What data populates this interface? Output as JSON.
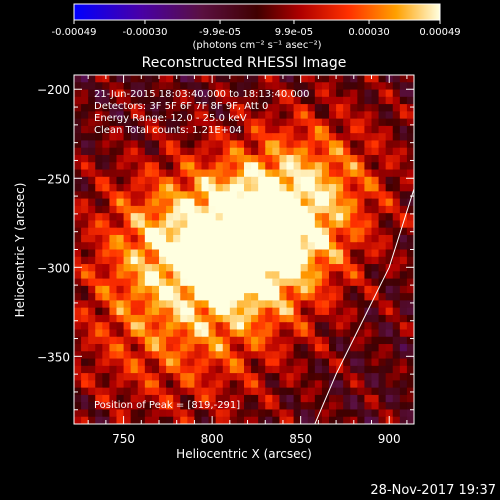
{
  "chart_data": {
    "type": "heatmap",
    "title": "Reconstructed RHESSI Image",
    "xlabel": "Heliocentric X (arcsec)",
    "ylabel": "Heliocentric Y (arcsec)",
    "xlim": [
      722,
      914
    ],
    "ylim": [
      -388,
      -192
    ],
    "x_ticks": [
      750,
      800,
      850,
      900
    ],
    "y_ticks": [
      -200,
      -250,
      -300,
      -350
    ],
    "colorbar": {
      "orientation": "horizontal",
      "position": "top",
      "colormap": "hot",
      "tick_values": [
        -0.00049,
        -0.0003,
        -9.9e-05,
        9.9e-05,
        0.0003,
        0.00049
      ],
      "tick_labels": [
        "-0.00049",
        "-0.00030",
        "-9.9e-05",
        "9.9e-05",
        "0.00030",
        "0.00049"
      ],
      "unit_label": "(photons cm⁻² s⁻¹ asec⁻²)",
      "range": [
        -0.00049,
        0.00049
      ]
    },
    "annotations": [
      "21-Jun-2015 18:03:40.000 to 18:13:40.000",
      "Detectors: 3F 5F 6F 7F 8F 9F, Att 0",
      "Energy Range: 12.0 - 25.0 keV",
      "Clean    Total counts: 1.21E+04"
    ],
    "peak_text": "Position of Peak = [819,-291]",
    "peak": [
      819,
      -291
    ],
    "sources": [
      {
        "x": 819,
        "y": -291,
        "intensity": 0.00049
      },
      {
        "x": 770,
        "y": -285,
        "intensity": 0.00028
      },
      {
        "x": 840,
        "y": -270,
        "intensity": 0.00025
      },
      {
        "x": 865,
        "y": -248,
        "intensity": 0.00018
      },
      {
        "x": 755,
        "y": -340,
        "intensity": 0.00015
      },
      {
        "x": 800,
        "y": -350,
        "intensity": 0.00013
      }
    ],
    "limb_curve": [
      [
        858,
        -388
      ],
      [
        870,
        -360
      ],
      [
        885,
        -330
      ],
      [
        900,
        -300
      ],
      [
        914,
        -256
      ]
    ]
  },
  "footer": {
    "date": "28-Nov-2017 19:37"
  }
}
